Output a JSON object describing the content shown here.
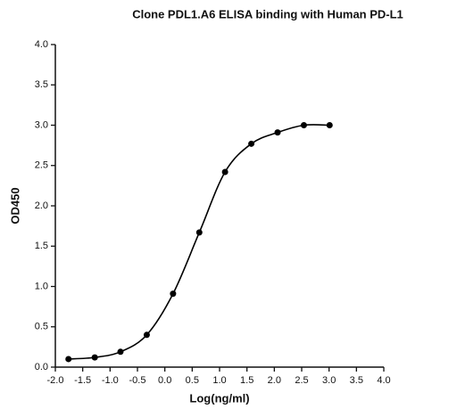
{
  "chart_data": {
    "type": "scatter",
    "title": "Clone PDL1.A6 ELISA binding with Human PD-L1",
    "xlabel": "Log(ng/ml)",
    "ylabel": "OD450",
    "x": [
      -1.76,
      -1.28,
      -0.81,
      -0.33,
      0.15,
      0.63,
      1.1,
      1.58,
      2.06,
      2.54,
      3.01
    ],
    "values": [
      0.1,
      0.12,
      0.19,
      0.4,
      0.91,
      1.67,
      2.42,
      2.77,
      2.91,
      3.0,
      3.0
    ],
    "color": "#000000",
    "smooth_curve": true,
    "xlim": [
      -2.0,
      4.0
    ],
    "xticks": [
      {
        "value": -2.0,
        "label": "-2.0"
      },
      {
        "value": -1.5,
        "label": "-1.5"
      },
      {
        "value": -1.0,
        "label": "-1.0"
      },
      {
        "value": -0.5,
        "label": "-0.5"
      },
      {
        "value": 0,
        "label": "0.0"
      },
      {
        "value": 0.5,
        "label": "0.5"
      },
      {
        "value": 1.0,
        "label": "1.0"
      },
      {
        "value": 1.5,
        "label": "1.5"
      },
      {
        "value": 2.0,
        "label": "2.0"
      },
      {
        "value": 2.5,
        "label": "2.5"
      },
      {
        "value": 3.0,
        "label": "3.0"
      },
      {
        "value": 3.5,
        "label": "3.5"
      },
      {
        "value": 4.0,
        "label": "4.0"
      }
    ],
    "ylim": [
      0,
      4.0
    ],
    "yticks": [
      {
        "value": 0,
        "label": "0.0"
      },
      {
        "value": 0.5,
        "label": "0.5"
      },
      {
        "value": 1.0,
        "label": "1.0"
      },
      {
        "value": 1.5,
        "label": "1.5"
      },
      {
        "value": 2.0,
        "label": "2.0"
      },
      {
        "value": 2.5,
        "label": "2.5"
      },
      {
        "value": 3.0,
        "label": "3.0"
      },
      {
        "value": 3.5,
        "label": "3.5"
      },
      {
        "value": 4.0,
        "label": "4.0"
      }
    ]
  }
}
